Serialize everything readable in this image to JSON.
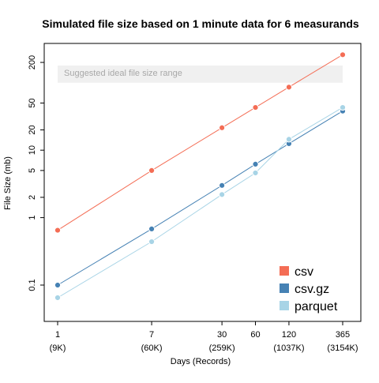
{
  "chart_data": {
    "type": "line",
    "title": "Simulated file size based on 1 minute data for 6 measurands",
    "xlabel": "Days (Records)",
    "ylabel": "File Size (mb)",
    "x_scale": "log",
    "y_scale": "log",
    "x": [
      1,
      7,
      30,
      60,
      120,
      365
    ],
    "x_tick_labels": [
      "1",
      "7",
      "30",
      "60",
      "120",
      "365"
    ],
    "x_tick_sublabels": [
      "(9K)",
      "(60K)",
      "(259K)",
      "(1037K)",
      "(3154K)"
    ],
    "x_tick_sublabel_positions": [
      1,
      7,
      30,
      120,
      365
    ],
    "y_ticks": [
      0.1,
      1,
      2,
      5,
      10,
      20,
      50,
      200
    ],
    "y_tick_labels": [
      "0.1",
      "1",
      "2",
      "5",
      "10",
      "20",
      "50",
      "200"
    ],
    "xlim": [
      1,
      365
    ],
    "ylim": [
      0.04,
      300
    ],
    "grid": false,
    "legend_position": "bottom-right",
    "band": {
      "label": "Suggested ideal file size range",
      "ymin": 100,
      "ymax": 180,
      "color": "#f0f0f0",
      "text_color": "#a8a8a8"
    },
    "series": [
      {
        "name": "csv",
        "color": "#f46d55",
        "values": [
          0.65,
          5.0,
          21.5,
          43,
          86,
          260
        ]
      },
      {
        "name": "csv.gz",
        "color": "#4682b4",
        "values": [
          0.1,
          0.68,
          3.0,
          6.2,
          12.5,
          38
        ]
      },
      {
        "name": "parquet",
        "color": "#a8d4e6",
        "values": [
          0.065,
          0.44,
          2.2,
          4.6,
          14.5,
          43
        ]
      }
    ]
  }
}
